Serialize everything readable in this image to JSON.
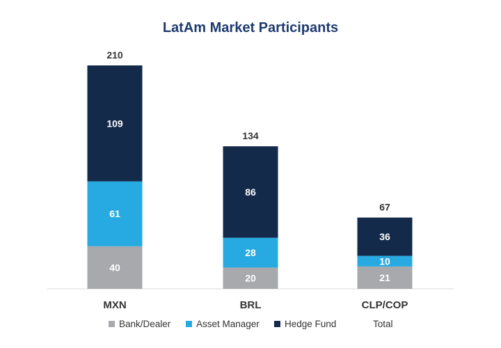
{
  "chart_data": {
    "type": "bar",
    "stacked": true,
    "title": "LatAm Market Participants",
    "categories": [
      "MXN",
      "BRL",
      "CLP/COP"
    ],
    "series": [
      {
        "name": "Bank/Dealer",
        "values": [
          40,
          20,
          21
        ],
        "color": "#a7a9ac",
        "label_color": "#ffffff"
      },
      {
        "name": "Asset Manager",
        "values": [
          61,
          28,
          10
        ],
        "color": "#27aae1",
        "label_color": "#ffffff"
      },
      {
        "name": "Hedge Fund",
        "values": [
          109,
          86,
          36
        ],
        "color": "#142a4a",
        "label_color": "#ffffff"
      }
    ],
    "totals": {
      "name": "Total",
      "values": [
        210,
        134,
        67
      ]
    },
    "ylim": [
      0,
      210
    ],
    "grid": false,
    "legend_position": "bottom"
  }
}
